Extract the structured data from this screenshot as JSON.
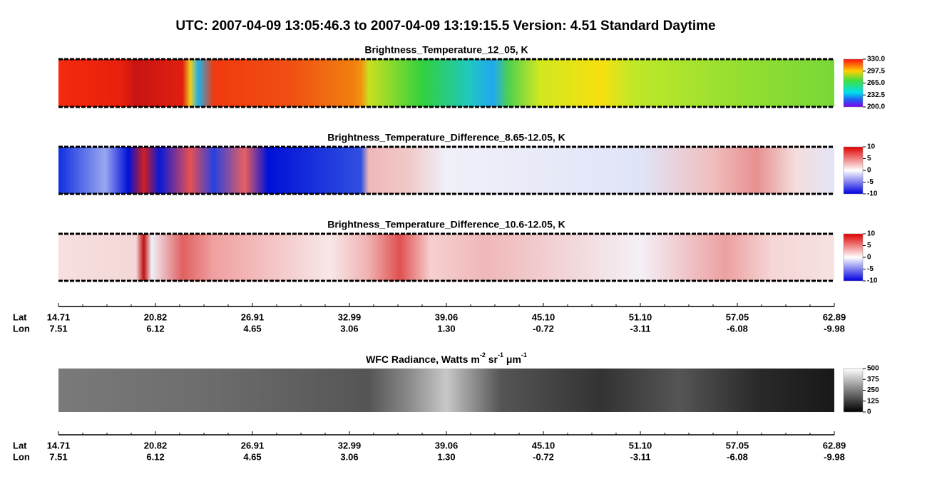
{
  "title": "UTC:  2007-04-09   13:05:46.3  to  2007-04-09   13:19:15.5    Version: 4.51  Standard Daytime",
  "panels": [
    {
      "title": "Brightness_Temperature_12_05, K",
      "colorbar": {
        "ticks": [
          {
            "value": 330,
            "label": "330.0"
          },
          {
            "value": 297.5,
            "label": "297.5"
          },
          {
            "value": 265,
            "label": "265.0"
          },
          {
            "value": 232.5,
            "label": "232.5"
          },
          {
            "value": 200,
            "label": "200.0"
          }
        ]
      }
    },
    {
      "title": "Brightness_Temperature_Difference_8.65-12.05, K",
      "colorbar": {
        "ticks": [
          10,
          5,
          0,
          -5,
          -10
        ]
      }
    },
    {
      "title": "Brightness_Temperature_Difference_10.6-12.05, K",
      "colorbar": {
        "ticks": [
          10,
          5,
          0,
          -5,
          -10
        ]
      }
    },
    {
      "title": [
        "WFC Radiance, Watts m",
        "-2",
        " sr",
        "-1",
        " μm",
        "-1"
      ],
      "colorbar": {
        "ticks": [
          500,
          375,
          250,
          125,
          0
        ]
      }
    }
  ],
  "axes": [
    {
      "lat_label": "Lat",
      "lon_label": "Lon",
      "lat": [
        "14.71",
        "20.82",
        "26.91",
        "32.99",
        "39.06",
        "45.10",
        "51.10",
        "57.05",
        "62.89"
      ],
      "lon": [
        "7.51",
        "6.12",
        "4.65",
        "3.06",
        "1.30",
        "-0.72",
        "-3.11",
        "-6.08",
        "-9.98"
      ]
    },
    {
      "lat_label": "Lat",
      "lon_label": "Lon",
      "lat": [
        "14.71",
        "20.82",
        "26.91",
        "32.99",
        "39.06",
        "45.10",
        "51.10",
        "57.05",
        "62.89"
      ],
      "lon": [
        "7.51",
        "6.12",
        "4.65",
        "3.06",
        "1.30",
        "-0.72",
        "-3.11",
        "-6.08",
        "-9.98"
      ]
    }
  ]
}
